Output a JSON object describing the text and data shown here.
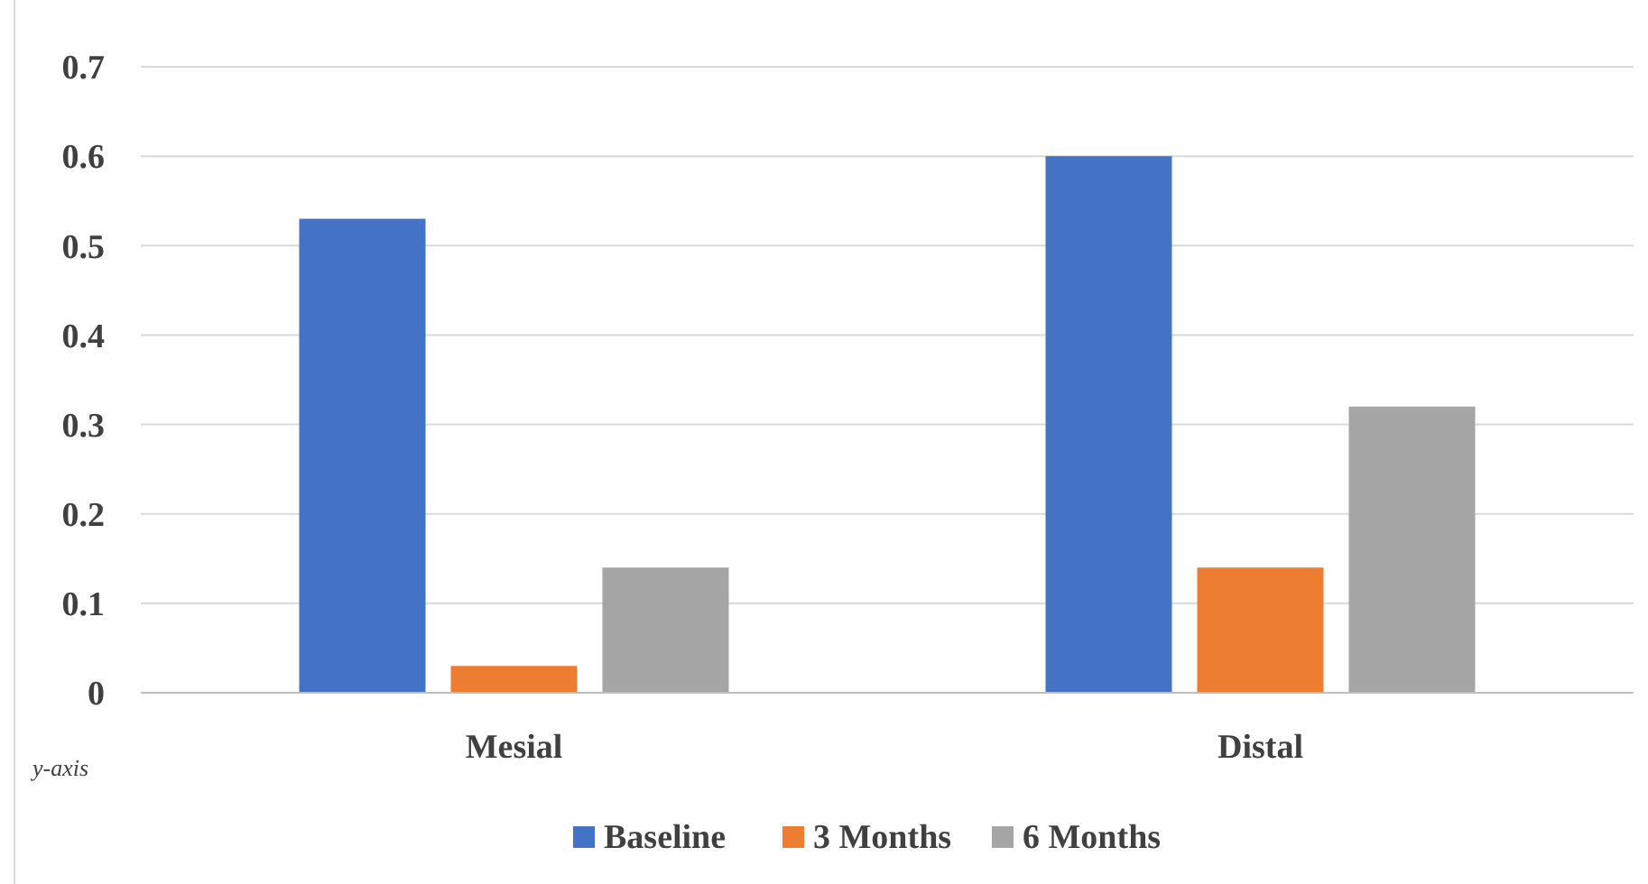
{
  "chart_data": {
    "type": "bar",
    "categories": [
      "Mesial",
      "Distal"
    ],
    "series": [
      {
        "name": "Baseline",
        "color": "#4472c4",
        "values": [
          0.53,
          0.6
        ]
      },
      {
        "name": "3 Months",
        "color": "#ed7d31",
        "values": [
          0.03,
          0.14
        ]
      },
      {
        "name": "6 Months",
        "color": "#a5a5a5",
        "values": [
          0.14,
          0.32
        ]
      }
    ],
    "ylim": [
      0,
      0.7
    ],
    "yticks": [
      0,
      0.1,
      0.2,
      0.3,
      0.4,
      0.5,
      0.6,
      0.7
    ],
    "grid": "y",
    "legend": "bottom",
    "annotations": [
      "y-axis"
    ]
  }
}
